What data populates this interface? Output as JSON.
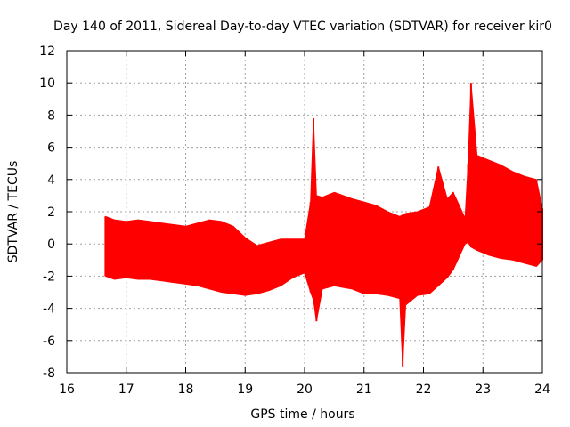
{
  "chart_data": {
    "type": "line",
    "title": "Day 140 of 2011, Sidereal Day-to-day VTEC variation (SDTVAR) for receiver kir0",
    "xlabel": "GPS time / hours",
    "ylabel": "SDTVAR / TECUs",
    "xlim": [
      16,
      24
    ],
    "ylim": [
      -8,
      12
    ],
    "xticks": [
      16,
      17,
      18,
      19,
      20,
      21,
      22,
      23,
      24
    ],
    "yticks": [
      -8,
      -6,
      -4,
      -2,
      0,
      2,
      4,
      6,
      8,
      10,
      12
    ],
    "grid": true,
    "legend": "none",
    "color": "#ff0000",
    "series": [
      {
        "x": [
          16.65,
          16.8,
          17.0,
          17.2,
          17.4,
          17.6,
          17.8,
          18.0,
          18.2,
          18.4,
          18.6,
          18.8,
          19.0,
          19.2,
          19.4,
          19.6,
          19.8,
          20.0,
          20.1,
          20.15,
          20.2,
          20.3,
          20.5,
          20.8,
          21.0,
          21.2,
          21.4,
          21.6,
          21.65,
          21.7,
          21.9,
          22.1,
          22.25,
          22.4,
          22.5,
          22.7,
          22.75,
          22.8,
          22.9,
          23.1,
          23.3,
          23.5,
          23.7,
          23.9,
          24.0
        ],
        "upper": [
          1.7,
          1.5,
          1.4,
          1.5,
          1.4,
          1.3,
          1.2,
          1.1,
          1.3,
          1.5,
          1.4,
          1.1,
          0.4,
          -0.1,
          0.1,
          0.3,
          0.3,
          0.3,
          2.6,
          7.8,
          3.0,
          2.9,
          3.2,
          2.8,
          2.6,
          2.4,
          2.0,
          1.7,
          1.8,
          1.9,
          2.0,
          2.3,
          4.8,
          2.8,
          3.2,
          1.6,
          5.0,
          10.0,
          5.5,
          5.2,
          4.9,
          4.5,
          4.2,
          4.0,
          2.2
        ],
        "lower": [
          -2.0,
          -2.2,
          -2.1,
          -2.2,
          -2.2,
          -2.3,
          -2.4,
          -2.5,
          -2.6,
          -2.8,
          -3.0,
          -3.1,
          -3.2,
          -3.1,
          -2.9,
          -2.6,
          -2.1,
          -1.8,
          -3.0,
          -3.5,
          -4.8,
          -2.8,
          -2.6,
          -2.8,
          -3.1,
          -3.1,
          -3.2,
          -3.4,
          -7.6,
          -3.8,
          -3.2,
          -3.1,
          -2.6,
          -2.1,
          -1.6,
          0.0,
          0.1,
          -0.2,
          -0.4,
          -0.7,
          -0.9,
          -1.0,
          -1.2,
          -1.4,
          -1.0
        ]
      }
    ]
  }
}
